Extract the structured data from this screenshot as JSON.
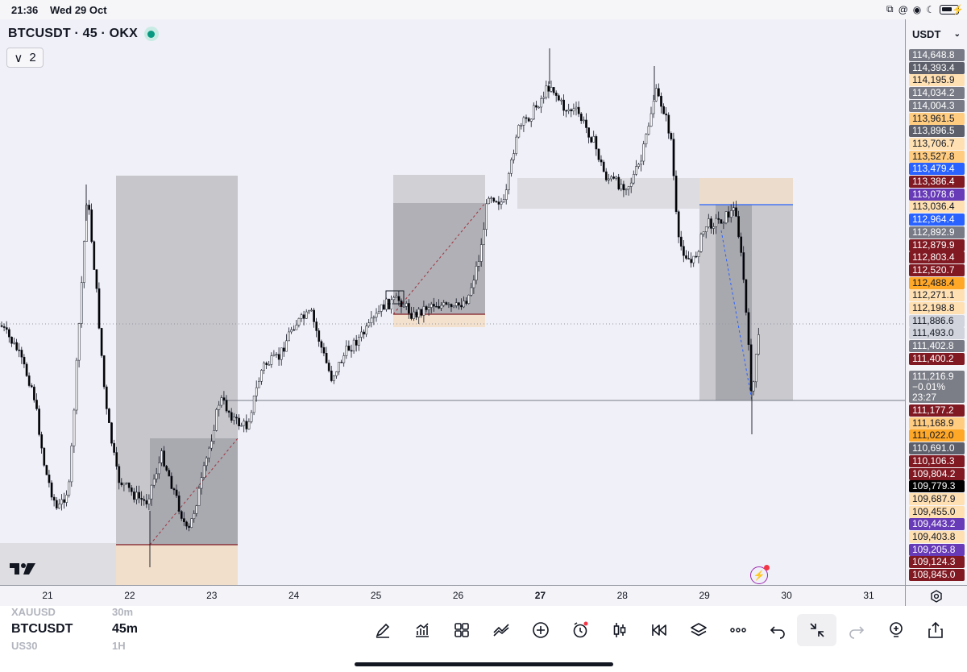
{
  "status_bar": {
    "time": "21:36",
    "date": "Wed 29 Oct"
  },
  "header": {
    "symbol_line": "BTCUSDT · 45 · OKX",
    "indicator_count": "2"
  },
  "price_scale": {
    "currency": "USDT",
    "labels": [
      {
        "text": "114,648.8",
        "bg": "#787b86",
        "fg": "#ffffff"
      },
      {
        "text": "114,393.4",
        "bg": "#5d606b",
        "fg": "#ffffff"
      },
      {
        "text": "114,195.9",
        "bg": "#ffe0b2",
        "fg": "#131722"
      },
      {
        "text": "114,034.2",
        "bg": "#787b86",
        "fg": "#ffffff"
      },
      {
        "text": "114,004.3",
        "bg": "#787b86",
        "fg": "#ffffff"
      },
      {
        "text": "113,961.5",
        "bg": "#ffcc80",
        "fg": "#131722"
      },
      {
        "text": "113,896.5",
        "bg": "#5d606b",
        "fg": "#ffffff"
      },
      {
        "text": "113,706.7",
        "bg": "#ffe0b2",
        "fg": "#131722"
      },
      {
        "text": "113,527.8",
        "bg": "#ffcc80",
        "fg": "#131722"
      },
      {
        "text": "113,479.4",
        "bg": "#2962ff",
        "fg": "#ffffff"
      },
      {
        "text": "113,386.4",
        "bg": "#801922",
        "fg": "#ffffff"
      },
      {
        "text": "113,078.6",
        "bg": "#673ab7",
        "fg": "#ffffff"
      },
      {
        "text": "113,036.4",
        "bg": "#ffe0b2",
        "fg": "#131722"
      },
      {
        "text": "112,964.4",
        "bg": "#2962ff",
        "fg": "#ffffff"
      },
      {
        "text": "112,892.9",
        "bg": "#787b86",
        "fg": "#ffffff"
      },
      {
        "text": "112,879.9",
        "bg": "#801922",
        "fg": "#ffffff"
      },
      {
        "text": "112,803.4",
        "bg": "#801922",
        "fg": "#ffffff"
      },
      {
        "text": "112,520.7",
        "bg": "#801922",
        "fg": "#ffffff"
      },
      {
        "text": "112,488.4",
        "bg": "#ffa726",
        "fg": "#131722"
      },
      {
        "text": "112,271.1",
        "bg": "#ffe0b2",
        "fg": "#131722"
      },
      {
        "text": "112,198.8",
        "bg": "#ffe0b2",
        "fg": "#131722"
      },
      {
        "text": "111,886.6",
        "bg": "#d1d4dc",
        "fg": "#131722"
      },
      {
        "text": "111,493.0",
        "bg": "#d1d4dc",
        "fg": "#131722"
      },
      {
        "text": "111,402.8",
        "bg": "#787b86",
        "fg": "#ffffff"
      },
      {
        "text": "111,400.2",
        "bg": "#801922",
        "fg": "#ffffff"
      },
      {
        "text": "111,177.2",
        "bg": "#801922",
        "fg": "#ffffff"
      },
      {
        "text": "111,168.9",
        "bg": "#ffcc80",
        "fg": "#131722"
      },
      {
        "text": "111,022.0",
        "bg": "#ffa726",
        "fg": "#131722"
      },
      {
        "text": "110,691.0",
        "bg": "#5d606b",
        "fg": "#ffffff"
      },
      {
        "text": "110,106.3",
        "bg": "#801922",
        "fg": "#ffffff"
      },
      {
        "text": "109,804.2",
        "bg": "#801922",
        "fg": "#ffffff"
      },
      {
        "text": "109,779.3",
        "bg": "#000000",
        "fg": "#ffffff"
      },
      {
        "text": "109,687.9",
        "bg": "#ffe0b2",
        "fg": "#131722"
      },
      {
        "text": "109,455.0",
        "bg": "#ffe0b2",
        "fg": "#131722"
      },
      {
        "text": "109,443.2",
        "bg": "#673ab7",
        "fg": "#ffffff"
      },
      {
        "text": "109,403.8",
        "bg": "#ffe0b2",
        "fg": "#131722"
      },
      {
        "text": "109,205.8",
        "bg": "#673ab7",
        "fg": "#ffffff"
      },
      {
        "text": "109,124.3",
        "bg": "#801922",
        "fg": "#ffffff"
      },
      {
        "text": "108,845.0",
        "bg": "#801922",
        "fg": "#ffffff"
      }
    ],
    "last_price": {
      "price": "111,216.9",
      "change": "−0.01%",
      "countdown": "23:27"
    }
  },
  "time_axis": {
    "ticks": [
      {
        "label": "21",
        "bold": false
      },
      {
        "label": "22",
        "bold": false
      },
      {
        "label": "23",
        "bold": false
      },
      {
        "label": "24",
        "bold": false
      },
      {
        "label": "25",
        "bold": false
      },
      {
        "label": "26",
        "bold": false
      },
      {
        "label": "27",
        "bold": true
      },
      {
        "label": "28",
        "bold": false
      },
      {
        "label": "29",
        "bold": false
      },
      {
        "label": "30",
        "bold": false
      },
      {
        "label": "31",
        "bold": false
      }
    ]
  },
  "bottom_bar": {
    "watchlist_above": "XAUUSD",
    "tf_above": "30m",
    "symbol": "BTCUSDT",
    "timeframe": "45m",
    "watchlist_below": "US30",
    "tf_below": "1H",
    "tools": [
      "drawing-tool",
      "indicators",
      "layouts",
      "compare",
      "add-alert-plus",
      "alert",
      "chart-type",
      "replay",
      "layers",
      "more",
      "undo",
      "exit-fullscreen",
      "redo",
      "add-idea",
      "share"
    ]
  },
  "colors": {
    "bull": "#ffffff",
    "bear": "#000000",
    "wick": "#131722",
    "zone_gray": "#c4c4c9",
    "zone_peach": "#f3e1cd",
    "red_line": "#801922",
    "blue_line": "#2962ff"
  }
}
